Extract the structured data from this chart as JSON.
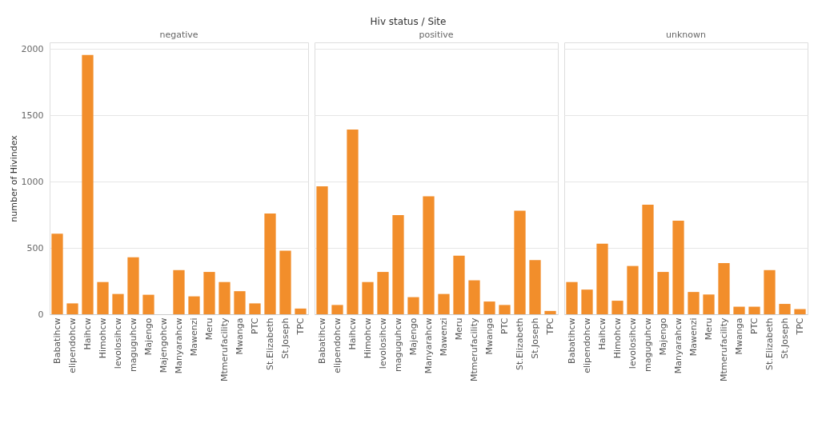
{
  "chart_data": [
    {
      "type": "bar",
      "title": "negative",
      "annotations": [
        "Hiv status / Site"
      ],
      "ylabel": "number of Hivindex",
      "categories": [
        "Babatihcw",
        "elipendohcw",
        "Haihcw",
        "Himohcw",
        "levolosihcw",
        "maguguhcw",
        "Majengo",
        "Majengohcw",
        "Manyarahcw",
        "Mawenzi",
        "Meru",
        "Mtmerufacility",
        "Mwanga",
        "PTC",
        "St.Elizabeth",
        "St.Joseph",
        "TPC"
      ],
      "values": [
        607,
        82,
        1955,
        243,
        153,
        429,
        147,
        null,
        333,
        135,
        319,
        243,
        174,
        82,
        759,
        479,
        43
      ],
      "color": "#f28e2b",
      "ylim": [
        0,
        2050
      ],
      "yticks": [
        0,
        500,
        1000,
        1500,
        2000
      ],
      "grid": "y"
    },
    {
      "type": "bar",
      "title": "positive",
      "categories": [
        "Babatihcw",
        "elipendohcw",
        "Haihcw",
        "Himohcw",
        "levolosihcw",
        "maguguhcw",
        "Majengo",
        "Manyarahcw",
        "Mawenzi",
        "Meru",
        "Mtmerufacility",
        "Mwanga",
        "PTC",
        "St.Elizabeth",
        "St.Joseph",
        "TPC"
      ],
      "values": [
        965,
        70,
        1393,
        243,
        319,
        748,
        129,
        890,
        153,
        442,
        256,
        96,
        70,
        781,
        409,
        25
      ],
      "color": "#f28e2b",
      "ylim": [
        0,
        2050
      ],
      "yticks": [
        0,
        500,
        1000,
        1500,
        2000
      ],
      "grid": "y",
      "tick_labels": "x"
    },
    {
      "type": "bar",
      "title": "unknown",
      "categories": [
        "Babatihcw",
        "elipendohcw",
        "Haihcw",
        "Himohcw",
        "levolosihcw",
        "maguguhcw",
        "Majengo",
        "Manyarahcw",
        "Mawenzi",
        "Meru",
        "Mtmerufacility",
        "Mwanga",
        "PTC",
        "St.Elizabeth",
        "St.Joseph",
        "TPC"
      ],
      "values": [
        243,
        186,
        532,
        102,
        364,
        826,
        319,
        705,
        168,
        149,
        386,
        57,
        57,
        333,
        78,
        39
      ],
      "color": "#f28e2b",
      "ylim": [
        0,
        2050
      ],
      "yticks": [
        0,
        500,
        1000,
        1500,
        2000
      ],
      "grid": "y",
      "tick_labels": "x"
    }
  ]
}
